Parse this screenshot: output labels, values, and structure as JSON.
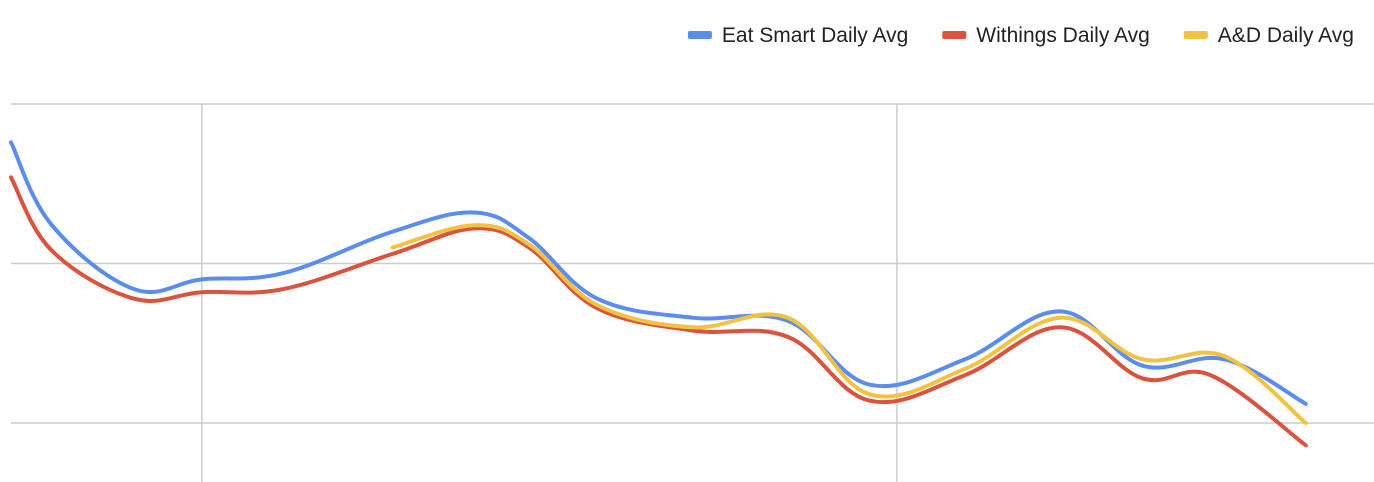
{
  "chart_data": {
    "type": "line",
    "title": "",
    "xlabel": "",
    "ylabel": "",
    "legend_position": "top-right",
    "grid": true,
    "xlim": [
      0,
      100
    ],
    "ylim": [
      0,
      100
    ],
    "x_gridlines": [
      14,
      65,
      115
    ],
    "y_gridlines": [
      100,
      50,
      0
    ],
    "series": [
      {
        "name": "Eat Smart Daily Avg",
        "color": "#5b8def",
        "points": [
          [
            0,
            88
          ],
          [
            3,
            62
          ],
          [
            9,
            42
          ],
          [
            14,
            45
          ],
          [
            20,
            47
          ],
          [
            28,
            60
          ],
          [
            34,
            66
          ],
          [
            38,
            58
          ],
          [
            43,
            39
          ],
          [
            50,
            33
          ],
          [
            57,
            32
          ],
          [
            63,
            12
          ],
          [
            70,
            20
          ],
          [
            77,
            35
          ],
          [
            83,
            18
          ],
          [
            89,
            20
          ],
          [
            95,
            6
          ]
        ]
      },
      {
        "name": "Withings Daily Avg",
        "color": "#d9533f",
        "points": [
          [
            0,
            77
          ],
          [
            3,
            54
          ],
          [
            9,
            39
          ],
          [
            14,
            41
          ],
          [
            20,
            42
          ],
          [
            28,
            53
          ],
          [
            34,
            61
          ],
          [
            38,
            55
          ],
          [
            43,
            36
          ],
          [
            50,
            29
          ],
          [
            57,
            27
          ],
          [
            63,
            7
          ],
          [
            70,
            15
          ],
          [
            77,
            30
          ],
          [
            83,
            14
          ],
          [
            88,
            15
          ],
          [
            95,
            -7
          ]
        ]
      },
      {
        "name": "A&D Daily Avg",
        "color": "#f2c242",
        "points": [
          [
            28,
            55
          ],
          [
            34,
            62
          ],
          [
            38,
            56
          ],
          [
            43,
            37
          ],
          [
            50,
            30
          ],
          [
            57,
            33
          ],
          [
            63,
            9
          ],
          [
            70,
            17
          ],
          [
            77,
            33
          ],
          [
            83,
            20
          ],
          [
            89,
            21
          ],
          [
            95,
            0
          ]
        ]
      }
    ]
  }
}
